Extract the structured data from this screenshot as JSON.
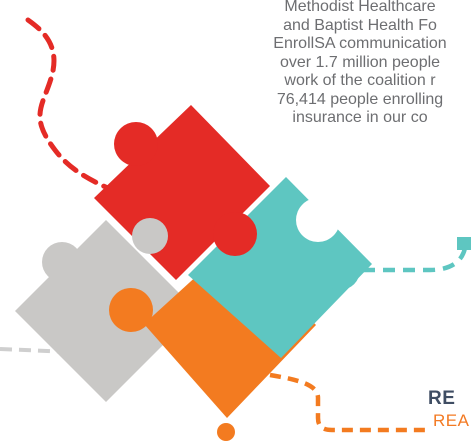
{
  "paragraph": {
    "lines": [
      "Methodist Healthcare",
      "and Baptist Health Fo",
      "EnrollSA communication",
      "over 1.7 million people",
      "work of the coalition r",
      "76,414 people enrolling",
      "insurance in our co"
    ]
  },
  "footer": {
    "heading": "RE",
    "subheading": "REA"
  },
  "colors": {
    "red": "#e42b26",
    "gray": "#c9c8c6",
    "teal": "#5ec6c1",
    "orange": "#f37b20",
    "dash_red": "#e42b26",
    "dash_teal": "#5ec6c1",
    "dash_gray": "#cfcfcf",
    "dash_orange": "#f37b20",
    "text_gray": "#6d6e71",
    "heading_navy": "#3f4d63"
  }
}
